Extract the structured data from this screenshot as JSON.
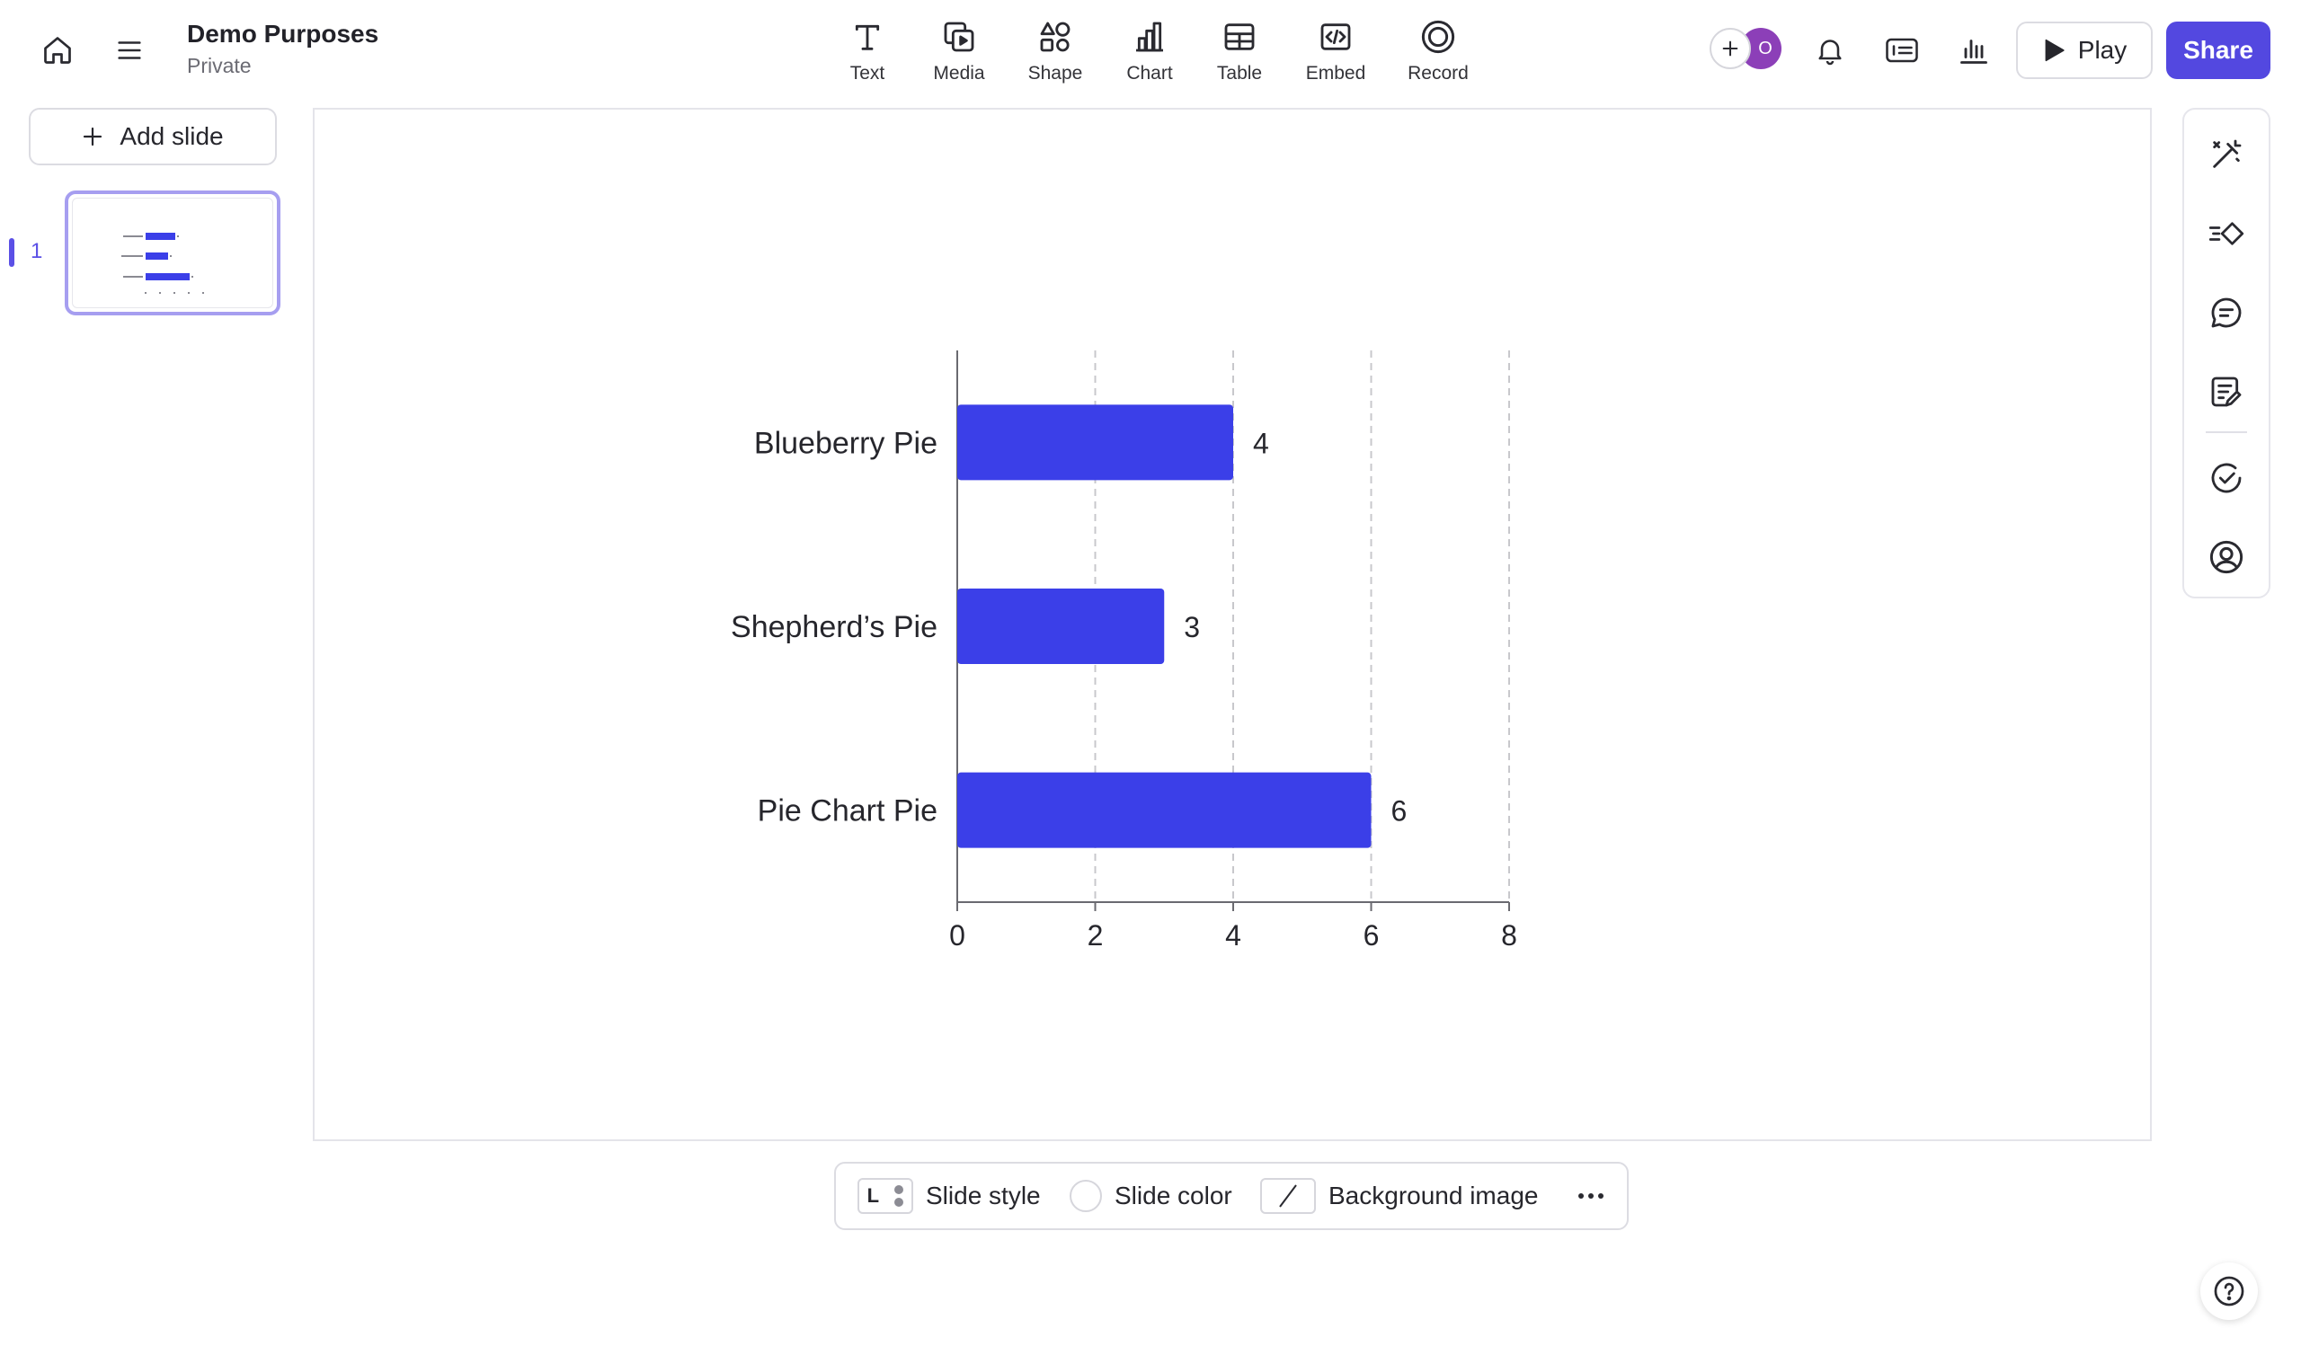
{
  "document": {
    "title": "Demo Purposes",
    "visibility": "Private"
  },
  "toolbar": {
    "tools": [
      {
        "id": "text",
        "label": "Text",
        "icon": "text-icon"
      },
      {
        "id": "media",
        "label": "Media",
        "icon": "media-icon"
      },
      {
        "id": "shape",
        "label": "Shape",
        "icon": "shape-icon"
      },
      {
        "id": "chart",
        "label": "Chart",
        "icon": "chart-icon"
      },
      {
        "id": "table",
        "label": "Table",
        "icon": "table-icon"
      },
      {
        "id": "embed",
        "label": "Embed",
        "icon": "embed-icon"
      },
      {
        "id": "record",
        "label": "Record",
        "icon": "record-icon"
      }
    ],
    "avatar_initial": "O",
    "play_label": "Play",
    "share_label": "Share"
  },
  "sidebar": {
    "add_slide_label": "Add slide",
    "slides": [
      {
        "number": "1",
        "selected": true
      }
    ]
  },
  "colors": {
    "accent": "#5348e0",
    "bar": "#3b3fe8",
    "avatar": "#8c3fb8"
  },
  "chart_data": {
    "type": "bar",
    "orientation": "horizontal",
    "categories": [
      "Blueberry Pie",
      "Shepherd’s Pie",
      "Pie Chart Pie"
    ],
    "values": [
      4,
      3,
      6
    ],
    "data_labels": [
      "4",
      "3",
      "6"
    ],
    "xlim": [
      0,
      8
    ],
    "x_ticks": [
      0,
      2,
      4,
      6,
      8
    ],
    "grid": true,
    "title": "",
    "xlabel": "",
    "ylabel": ""
  },
  "bottom_bar": {
    "style_letter": "L",
    "slide_style_label": "Slide style",
    "slide_color_label": "Slide color",
    "background_image_label": "Background image"
  },
  "rail_icons": [
    "magic-icon",
    "interaction-icon",
    "comment-icon",
    "notes-icon",
    "check-icon",
    "profile-icon"
  ]
}
